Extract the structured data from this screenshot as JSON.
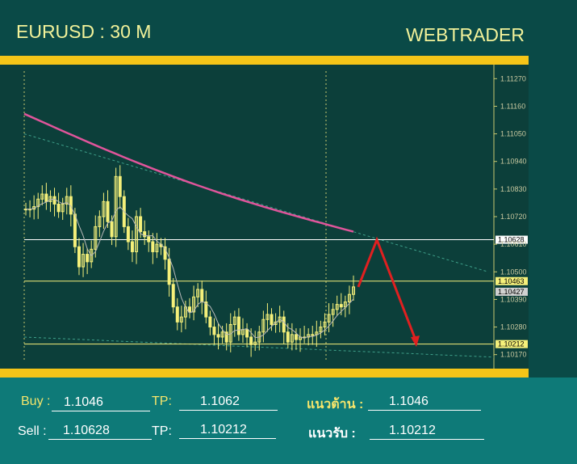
{
  "header": {
    "symbol_title": "EURUSD : 30 M",
    "brand": "WEBTRADER"
  },
  "colors": {
    "background": "#0a4a47",
    "gold": "#f5c518",
    "chart_bg": "#0c3f3a",
    "footer_bg": "#0e7a78",
    "title_yellow": "#f2f29a",
    "candle": "#f5f07a",
    "ma_pink": "#e0559b",
    "arrow_red": "#e02020"
  },
  "chart_data": {
    "type": "line",
    "instrument": "EURUSD",
    "timeframe": "30 M",
    "y_ticks": [
      "1.11270",
      "1.11160",
      "1.11050",
      "1.10940",
      "1.10830",
      "1.10720",
      "1.10610",
      "1.10500",
      "1.10390",
      "1.10280",
      "1.10170"
    ],
    "ylim": [
      1.1014,
      1.113
    ],
    "series": [
      {
        "close": [
          1.1075,
          1.1075,
          1.1076,
          1.1079,
          1.1081,
          1.1078,
          1.108,
          1.1077,
          1.1074,
          1.1077,
          1.108,
          1.1073,
          1.106,
          1.1052,
          1.1057,
          1.1054,
          1.1059,
          1.1068,
          1.1072,
          1.1078,
          1.107,
          1.1064,
          1.1088,
          1.108,
          1.1068,
          1.1062,
          1.1058,
          1.1072,
          1.1066,
          1.1064,
          1.1062,
          1.1058,
          1.1061,
          1.106,
          1.1055,
          1.1045,
          1.1036,
          1.103,
          1.1032,
          1.1036,
          1.1034,
          1.104,
          1.1043,
          1.1038,
          1.1032,
          1.1028,
          1.1025,
          1.1024,
          1.1026,
          1.1022,
          1.1029,
          1.1032,
          1.1025,
          1.1027,
          1.1024,
          1.1021,
          1.1022,
          1.1026,
          1.1031,
          1.1033,
          1.1029,
          1.103,
          1.1032,
          1.1026,
          1.1022,
          1.1025,
          1.1023,
          1.1024,
          1.1024,
          1.1025,
          1.1025,
          1.1026,
          1.1028,
          1.103,
          1.1033,
          1.1035,
          1.1037,
          1.1036,
          1.1038,
          1.1041,
          1.1044
        ]
      },
      {
        "name": "MA",
        "values_start": 1.1113,
        "values_end": 1.1066
      }
    ],
    "horizontal_lines": [
      {
        "value": 1.10628,
        "label": "1.10628",
        "color": "#ffffff"
      },
      {
        "value": 1.10463,
        "label": "1.10463",
        "color": "#f5f07a"
      },
      {
        "value": 1.10427,
        "label": "1.10427",
        "color": "#d0d0d0"
      },
      {
        "value": 1.10212,
        "label": "1.10212",
        "color": "#f5f07a"
      }
    ],
    "forecast_arrow": {
      "points": [
        1.1044,
        1.10628,
        1.1022
      ]
    }
  },
  "footer": {
    "buy_label": "Buy :",
    "buy_value": "1.1046",
    "buy_tp_label": "TP:",
    "buy_tp_value": "1.1062",
    "resistance_label": "แนวต้าน  :",
    "resistance_value": "1.1046",
    "sell_label": "Sell :",
    "sell_value": "1.10628",
    "sell_tp_label": "TP:",
    "sell_tp_value": "1.10212",
    "support_label": "แนวรับ   :",
    "support_value": "1.10212"
  }
}
